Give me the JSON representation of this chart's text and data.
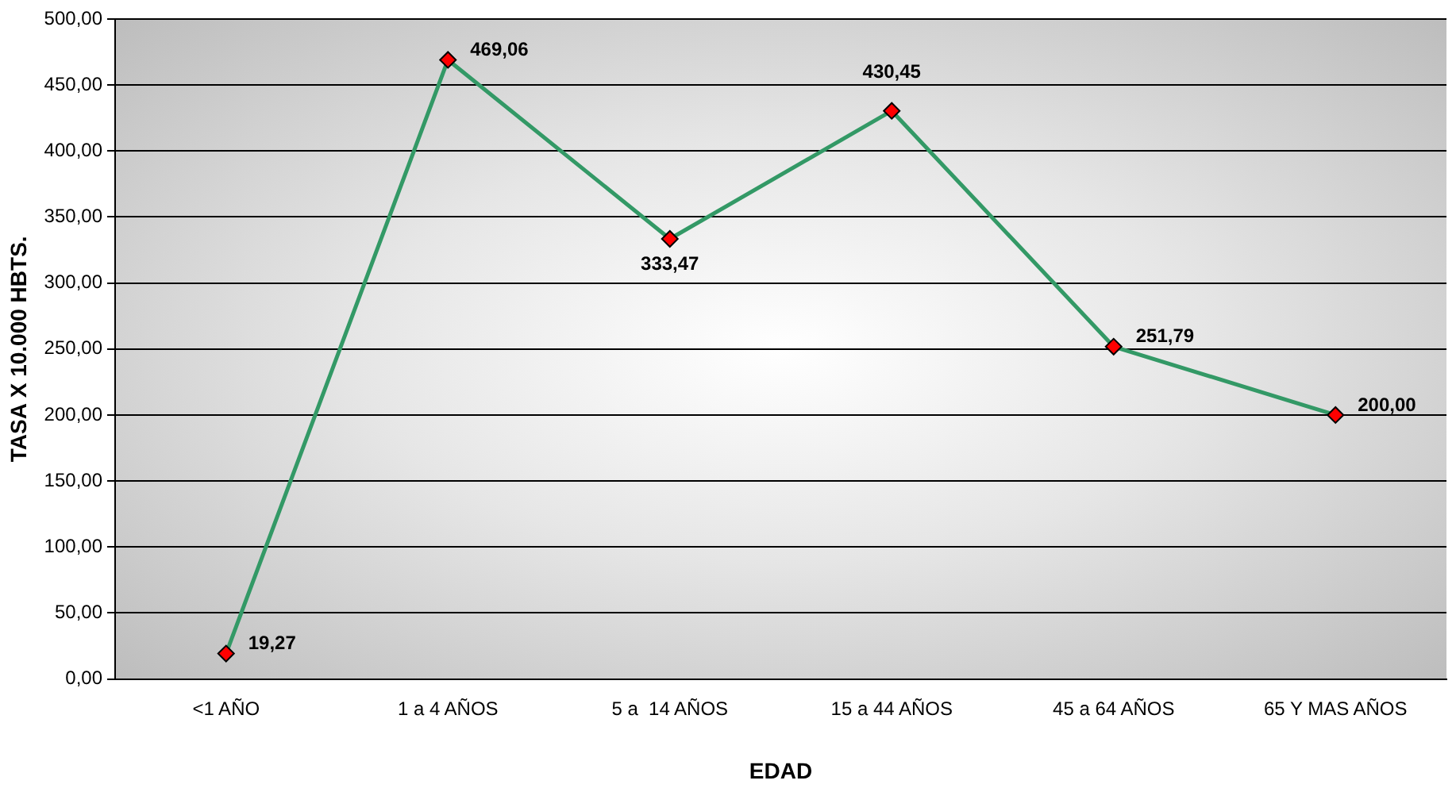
{
  "chart_data": {
    "type": "line",
    "xlabel": "EDAD",
    "ylabel": "TASA X 10.000 HBTS.",
    "categories": [
      "<1 AÑO",
      "1 a 4 AÑOS",
      "5 a  14 AÑOS",
      "15 a 44 AÑOS",
      "45 a 64 AÑOS",
      "65 Y MAS AÑOS"
    ],
    "series": [
      {
        "color": "#339966",
        "colors": [
          "#ff0000",
          "#ff0000",
          "#ff0000",
          "#ff0000",
          "#ff0000",
          "#ff0000"
        ],
        "values": [
          19.27,
          469.06,
          333.47,
          430.45,
          251.79,
          200.0
        ],
        "value_labels": [
          "19,27",
          "469,06",
          "333,47",
          "430,45",
          "251,79",
          "200,00"
        ]
      }
    ],
    "ylim": [
      0,
      500
    ],
    "yticks": [
      {
        "value": 0,
        "label": "0,00"
      },
      {
        "value": 50,
        "label": "50,00"
      },
      {
        "value": 100,
        "label": "100,00"
      },
      {
        "value": 150,
        "label": "150,00"
      },
      {
        "value": 200,
        "label": "200,00"
      },
      {
        "value": 250,
        "label": "250,00"
      },
      {
        "value": 300,
        "label": "300,00"
      },
      {
        "value": 350,
        "label": "350,00"
      },
      {
        "value": 400,
        "label": "400,00"
      },
      {
        "value": 450,
        "label": "450,00"
      },
      {
        "value": 500,
        "label": "500,00"
      }
    ],
    "grid": "y",
    "legend": false,
    "marker": "diamond",
    "line_style": "solid"
  }
}
